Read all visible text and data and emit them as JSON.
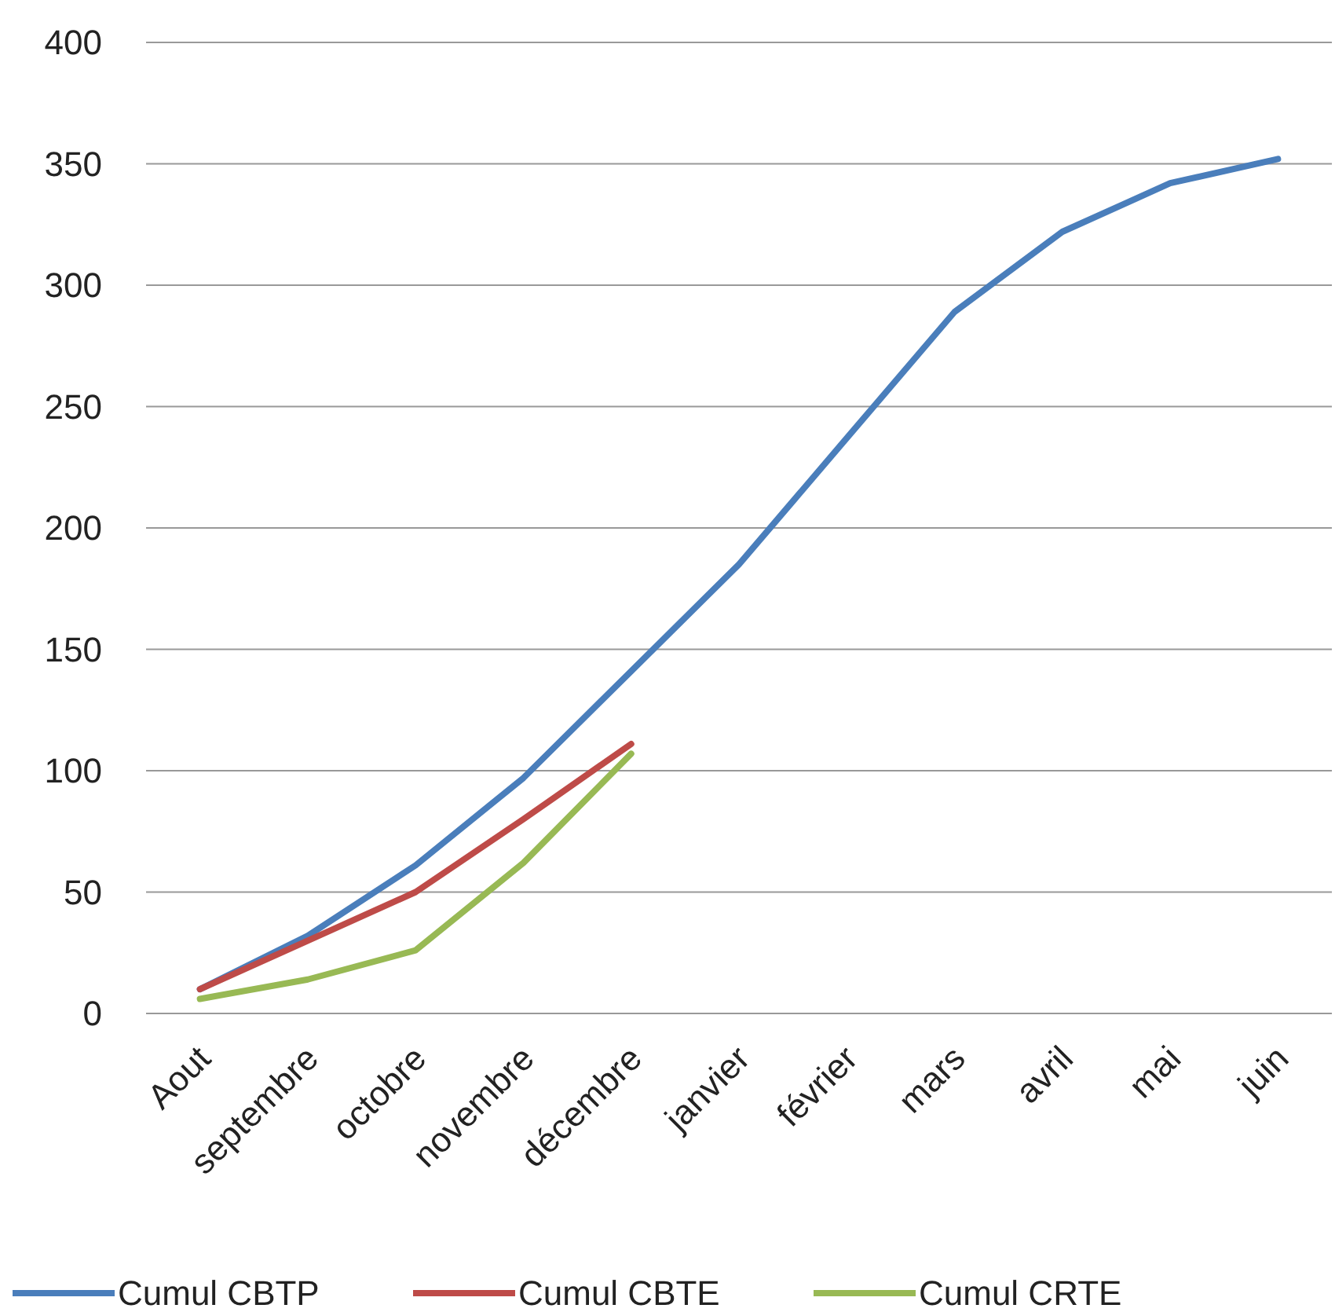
{
  "chart_data": {
    "type": "line",
    "categories": [
      "Aout",
      "septembre",
      "octobre",
      "novembre",
      "décembre",
      "janvier",
      "février",
      "mars",
      "avril",
      "mai",
      "juin"
    ],
    "series": [
      {
        "name": "Cumul CBTP",
        "color": "#4a7ebb",
        "values": [
          10,
          32,
          61,
          97,
          141,
          185,
          237,
          289,
          322,
          342,
          352
        ]
      },
      {
        "name": "Cumul CBTE",
        "color": "#be4b48",
        "values": [
          10,
          30,
          50,
          80,
          111,
          null,
          null,
          null,
          null,
          null,
          null
        ]
      },
      {
        "name": "Cumul CRTE",
        "color": "#98b954",
        "values": [
          6,
          14,
          26,
          62,
          107,
          null,
          null,
          null,
          null,
          null,
          null
        ]
      }
    ],
    "ylim": [
      0,
      400
    ],
    "yticks": [
      0,
      50,
      100,
      150,
      200,
      250,
      300,
      350,
      400
    ],
    "grid": "y",
    "legend": "bottom",
    "marker": "none",
    "line_style": "solid"
  }
}
